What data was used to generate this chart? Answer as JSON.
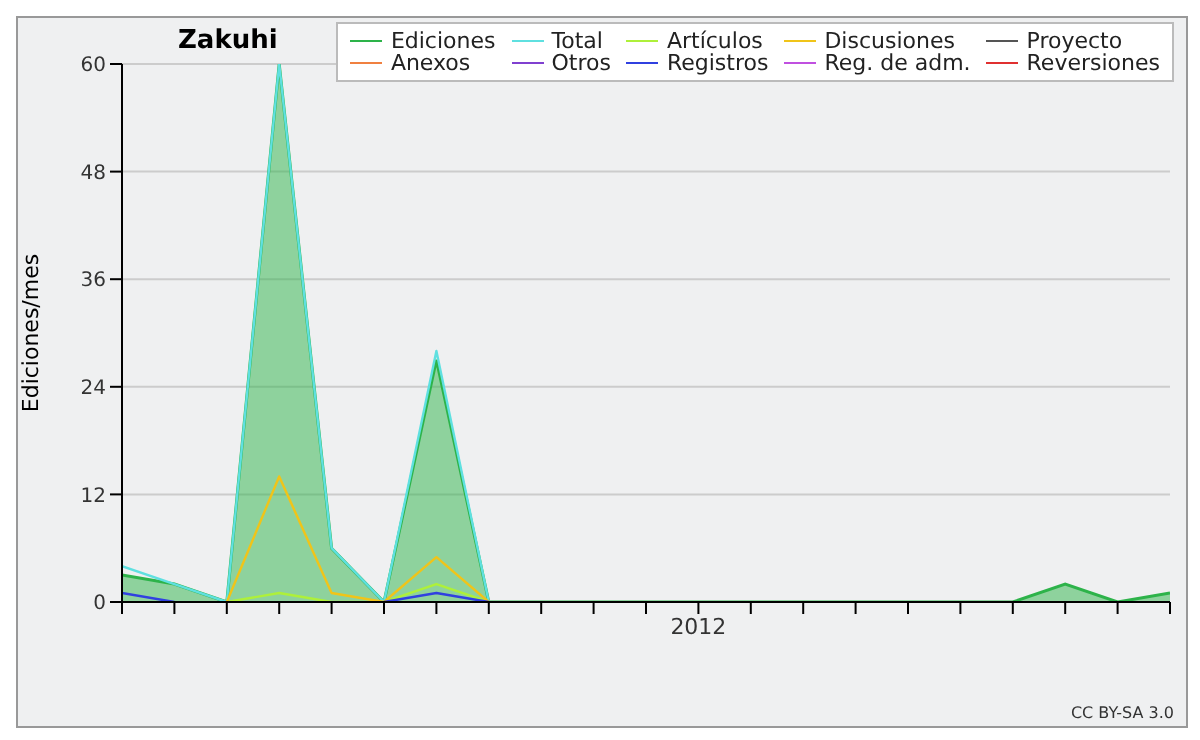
{
  "chart_data": {
    "type": "line",
    "title": "Zakuhi",
    "ylabel": "Ediciones/mes",
    "categories": [
      null,
      null,
      null,
      null,
      null,
      null,
      null,
      null,
      null,
      null,
      null,
      "2012",
      null,
      null,
      null,
      null,
      null,
      null,
      null,
      null,
      null
    ],
    "series": [
      {
        "name": "Ediciones",
        "color": "#2db34a",
        "type": "area",
        "values": [
          3,
          2,
          0,
          60,
          6,
          0,
          27,
          0,
          0,
          0,
          0,
          0,
          0,
          0,
          0,
          0,
          0,
          0,
          2,
          0,
          1
        ]
      },
      {
        "name": "Total",
        "color": "#5fe0e0",
        "values": [
          4,
          2,
          0,
          60,
          6,
          0,
          28,
          0,
          null,
          null,
          null,
          null,
          null,
          null,
          null,
          null,
          null,
          null,
          null,
          null,
          null
        ]
      },
      {
        "name": "Artículos",
        "color": "#aef03a",
        "values": [
          null,
          null,
          0,
          1,
          0,
          0,
          2,
          0,
          null,
          null,
          null,
          null,
          null,
          null,
          null,
          null,
          null,
          null,
          null,
          null,
          null
        ]
      },
      {
        "name": "Discusiones",
        "color": "#f0c419",
        "values": [
          null,
          null,
          0,
          14,
          1,
          0,
          5,
          0,
          null,
          null,
          null,
          null,
          null,
          null,
          null,
          null,
          null,
          null,
          null,
          null,
          null
        ]
      },
      {
        "name": "Proyecto",
        "color": "#555555",
        "values": [
          null,
          null,
          null,
          null,
          null,
          null,
          null,
          null,
          null,
          null,
          null,
          null,
          null,
          null,
          null,
          null,
          null,
          null,
          null,
          null,
          null
        ]
      },
      {
        "name": "Anexos",
        "color": "#f08040",
        "values": [
          null,
          null,
          null,
          null,
          null,
          null,
          null,
          null,
          null,
          null,
          null,
          null,
          null,
          null,
          null,
          null,
          null,
          null,
          null,
          null,
          null
        ]
      },
      {
        "name": "Otros",
        "color": "#8040d0",
        "values": [
          null,
          null,
          null,
          null,
          null,
          null,
          null,
          null,
          null,
          null,
          null,
          null,
          null,
          null,
          null,
          null,
          null,
          null,
          null,
          null,
          null
        ]
      },
      {
        "name": "Registros",
        "color": "#3040e0",
        "values": [
          1,
          0,
          null,
          null,
          null,
          0,
          1,
          0,
          null,
          null,
          null,
          null,
          null,
          null,
          null,
          null,
          null,
          null,
          null,
          null,
          null
        ]
      },
      {
        "name": "Reg. de adm.",
        "color": "#c050e0",
        "values": [
          null,
          null,
          null,
          null,
          null,
          null,
          null,
          null,
          null,
          null,
          null,
          null,
          null,
          null,
          null,
          null,
          null,
          null,
          null,
          null,
          null
        ]
      },
      {
        "name": "Reversiones",
        "color": "#e03030",
        "values": [
          null,
          null,
          null,
          null,
          null,
          null,
          null,
          null,
          null,
          null,
          null,
          null,
          null,
          null,
          null,
          null,
          null,
          null,
          null,
          null,
          null
        ]
      }
    ],
    "ylim": [
      0,
      60
    ],
    "yticks": [
      0,
      12,
      24,
      36,
      48,
      60
    ],
    "grid": "y",
    "legend": "top right",
    "marker": "none",
    "annotations": [
      "CC BY-SA 3.0"
    ]
  }
}
